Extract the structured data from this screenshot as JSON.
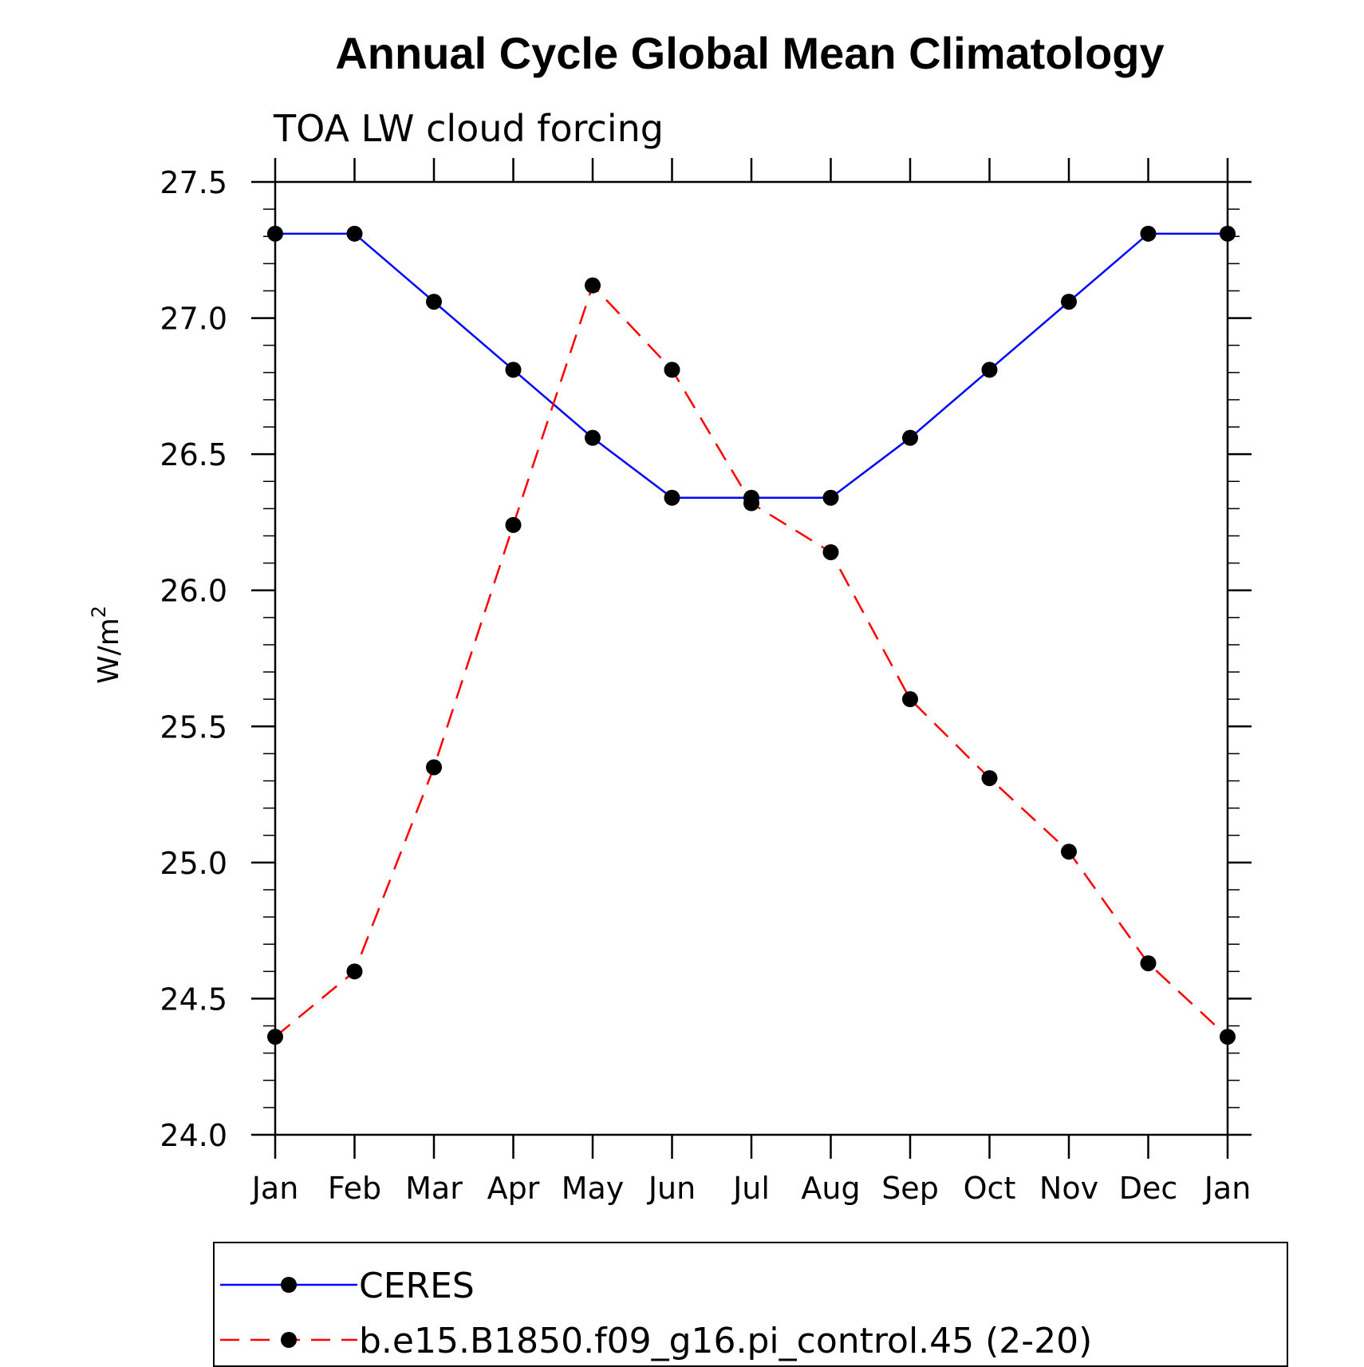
{
  "chart_data": {
    "type": "line",
    "title": "Annual Cycle Global Mean Climatology",
    "subtitle": "TOA LW cloud forcing",
    "xlabel": "",
    "ylabel": "W/m",
    "ylabel_superscript": "2",
    "categories": [
      "Jan",
      "Feb",
      "Mar",
      "Apr",
      "May",
      "Jun",
      "Jul",
      "Aug",
      "Sep",
      "Oct",
      "Nov",
      "Dec",
      "Jan"
    ],
    "ylim": [
      24.0,
      27.5
    ],
    "yticks": [
      "24.0",
      "24.5",
      "25.0",
      "25.5",
      "26.0",
      "26.5",
      "27.0",
      "27.5"
    ],
    "grid": false,
    "legend_position": "bottom",
    "series": [
      {
        "name": "CERES",
        "color": "#0000ff",
        "style": "solid",
        "marker": "filled-circle",
        "values": [
          27.31,
          27.31,
          27.06,
          26.81,
          26.56,
          26.34,
          26.34,
          26.34,
          26.56,
          26.81,
          27.06,
          27.31,
          27.31
        ]
      },
      {
        "name": "b.e15.B1850.f09_g16.pi_control.45 (2-20)",
        "color": "#ff0000",
        "style": "dashed",
        "marker": "filled-circle",
        "values": [
          24.36,
          24.6,
          25.35,
          26.24,
          27.12,
          26.81,
          26.32,
          26.14,
          25.6,
          25.31,
          25.04,
          24.63,
          24.36
        ]
      }
    ]
  }
}
